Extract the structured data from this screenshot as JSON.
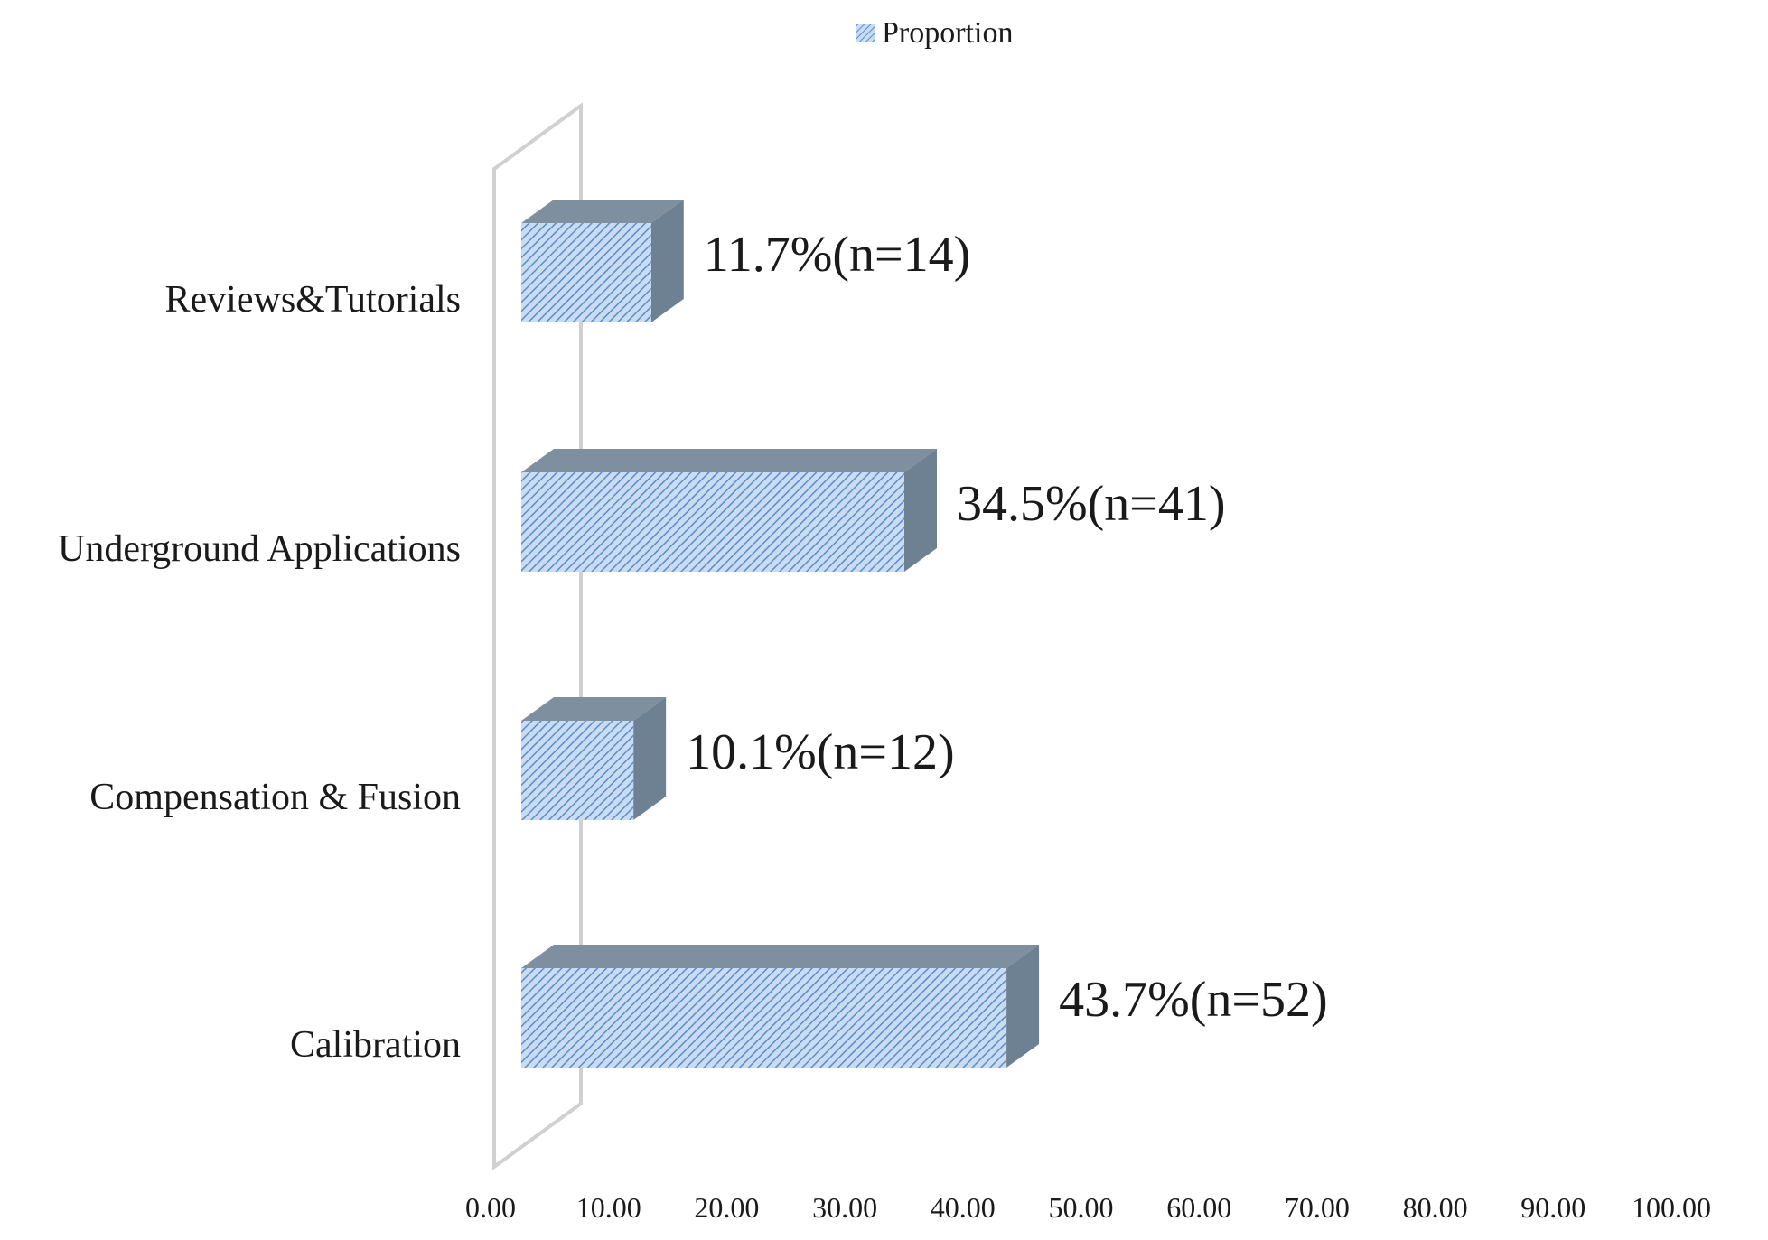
{
  "chart_data": {
    "type": "bar",
    "orientation": "horizontal",
    "style": "3d-hatched",
    "legend": {
      "label": "Proportion",
      "position": "top-center"
    },
    "categories": [
      "Calibration",
      "Compensation & Fusion",
      "Underground Applications",
      "Reviews&Tutorials"
    ],
    "series": [
      {
        "name": "Proportion",
        "values": [
          43.7,
          10.1,
          34.5,
          11.7
        ],
        "data_labels": [
          "43.7%(n=52)",
          "10.1%(n=12)",
          "34.5%(n=41)",
          "11.7%(n=14)"
        ]
      }
    ],
    "xlim": [
      0,
      100
    ],
    "xticks": [
      "0.00",
      "10.00",
      "20.00",
      "30.00",
      "40.00",
      "50.00",
      "60.00",
      "70.00",
      "80.00",
      "90.00",
      "100.00"
    ],
    "grid": false,
    "colors": {
      "bar_face": "#c9dcf2",
      "bar_hatch": "#5b8ccb",
      "bar_top": "#7e909f",
      "bar_side": "#6e8192",
      "wall": "#d0d0d0"
    }
  }
}
